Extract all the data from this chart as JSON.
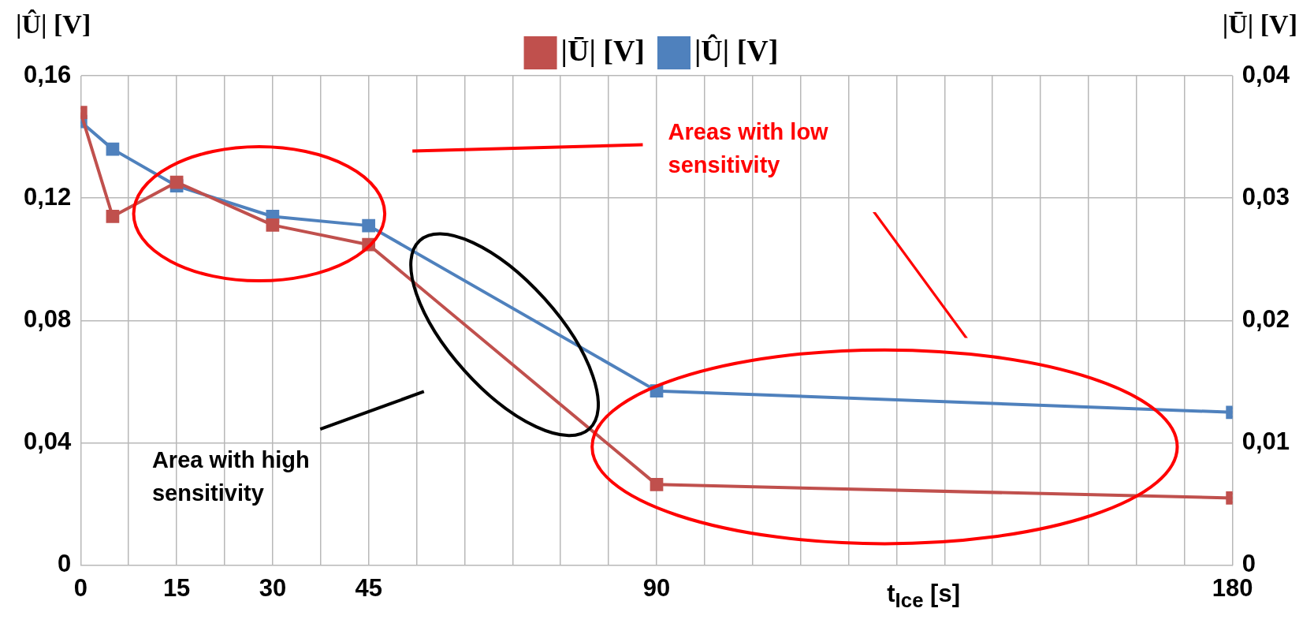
{
  "chart_data": {
    "type": "line",
    "xlabel": "t$_{Ice}$ [s]",
    "ylabel": "|Û| [V]",
    "y2label": "|Ū| [V]",
    "x": [
      0,
      5,
      15,
      30,
      45,
      90,
      180
    ],
    "series": [
      {
        "name": "|Û| [V]",
        "color": "#4f81bd",
        "values": [
          0.145,
          0.136,
          0.124,
          0.114,
          0.111,
          0.057,
          0.05
        ]
      },
      {
        "name": "|Ū| [V]",
        "color": "#c0504d",
        "axis": "y2",
        "values": [
          0.037,
          0.0285,
          0.0313,
          0.0278,
          0.0262,
          0.0066,
          0.0055
        ]
      }
    ],
    "xlim": [
      0,
      180
    ],
    "xticks": [
      0,
      {
        "value": 7.5,
        "label": null
      },
      15,
      {
        "value": 22.5,
        "label": null
      },
      30,
      {
        "value": 37.5,
        "label": null
      },
      45,
      {
        "value": 52.5,
        "label": null
      },
      {
        "value": 60,
        "label": null
      },
      {
        "value": 67.5,
        "label": null
      },
      {
        "value": 75,
        "label": null
      },
      {
        "value": 82.5,
        "label": null
      },
      90,
      {
        "value": 97.5,
        "label": null
      },
      {
        "value": 105,
        "label": null
      },
      {
        "value": 112.5,
        "label": null
      },
      {
        "value": 120,
        "label": null
      },
      {
        "value": 127.5,
        "label": null
      },
      {
        "value": 135,
        "label": null
      },
      {
        "value": 142.5,
        "label": null
      },
      {
        "value": 150,
        "label": null
      },
      {
        "value": 157.5,
        "label": null
      },
      {
        "value": 165,
        "label": null
      },
      {
        "value": 172.5,
        "label": null
      },
      180
    ],
    "ylim": [
      0,
      0.16
    ],
    "yticks": [
      0,
      {
        "value": 0.04,
        "label": "0,04"
      },
      {
        "value": 0.08,
        "label": "0,08"
      },
      {
        "value": 0.12,
        "label": "0,12"
      },
      {
        "value": 0.16,
        "label": "0,16"
      }
    ],
    "y2lim": [
      0,
      0.04
    ],
    "y2ticks": [
      0,
      {
        "value": 0.01,
        "label": "0,01"
      },
      {
        "value": 0.02,
        "label": "0,02"
      },
      {
        "value": 0.03,
        "label": "0,03"
      },
      {
        "value": 0.04,
        "label": "0,04"
      }
    ],
    "annotations": [
      "Areas with low sensitivity",
      "Area with high sensitivity"
    ],
    "grid": true,
    "legend": "top",
    "marker": "square",
    "line_style": "solid"
  }
}
